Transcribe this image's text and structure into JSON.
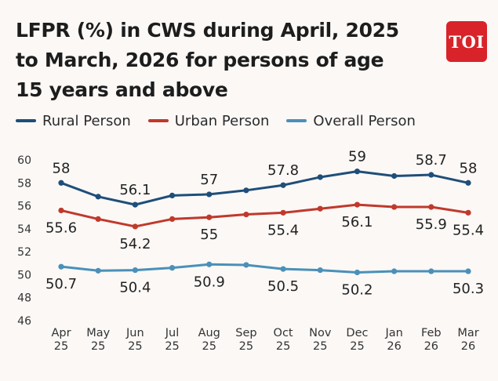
{
  "logo": {
    "text": "TOI"
  },
  "chart_data": {
    "type": "line",
    "title_lines": [
      "LFPR (%) in CWS during April, 2025",
      "to March, 2026 for persons of age",
      "15 years and above"
    ],
    "categories": [
      [
        "Apr",
        "25"
      ],
      [
        "May",
        "25"
      ],
      [
        "Jun",
        "25"
      ],
      [
        "Jul",
        "25"
      ],
      [
        "Aug",
        "25"
      ],
      [
        "Sep",
        "25"
      ],
      [
        "Oct",
        "25"
      ],
      [
        "Nov",
        "25"
      ],
      [
        "Dec",
        "25"
      ],
      [
        "Jan",
        "26"
      ],
      [
        "Feb",
        "26"
      ],
      [
        "Mar",
        "26"
      ]
    ],
    "ylim": [
      46,
      60
    ],
    "yticks": [
      46,
      48,
      50,
      52,
      54,
      56,
      58,
      60
    ],
    "grid": false,
    "legend_position": "top",
    "series": [
      {
        "name": "Rural Person",
        "color": "#1f4e79",
        "values": [
          58,
          56.8,
          56.1,
          56.9,
          57,
          57.35,
          57.8,
          58.5,
          59,
          58.6,
          58.7,
          58
        ],
        "labels": [
          "58",
          null,
          "56.1",
          null,
          "57",
          null,
          "57.8",
          null,
          "59",
          null,
          "58.7",
          "58"
        ],
        "label_pos": [
          "above",
          null,
          "above",
          null,
          "above",
          null,
          "above",
          null,
          "above",
          null,
          "above",
          "above"
        ]
      },
      {
        "name": "Urban Person",
        "color": "#c0392b",
        "values": [
          55.6,
          54.85,
          54.2,
          54.85,
          55,
          55.25,
          55.4,
          55.75,
          56.1,
          55.9,
          55.9,
          55.4
        ],
        "labels": [
          "55.6",
          null,
          "54.2",
          null,
          "55",
          null,
          "55.4",
          null,
          "56.1",
          null,
          "55.9",
          "55.4"
        ],
        "label_pos": [
          "below",
          null,
          "below",
          null,
          "below",
          null,
          "below",
          null,
          "below",
          null,
          "below",
          "below"
        ]
      },
      {
        "name": "Overall Person",
        "color": "#4a90b8",
        "values": [
          50.7,
          50.35,
          50.4,
          50.6,
          50.9,
          50.85,
          50.5,
          50.4,
          50.2,
          50.3,
          50.3,
          50.3
        ],
        "labels": [
          "50.7",
          null,
          "50.4",
          null,
          "50.9",
          null,
          "50.5",
          null,
          "50.2",
          null,
          null,
          "50.3"
        ],
        "label_pos": [
          "below",
          null,
          "below",
          null,
          "below",
          null,
          "below",
          null,
          "below",
          null,
          null,
          "below"
        ]
      }
    ]
  }
}
